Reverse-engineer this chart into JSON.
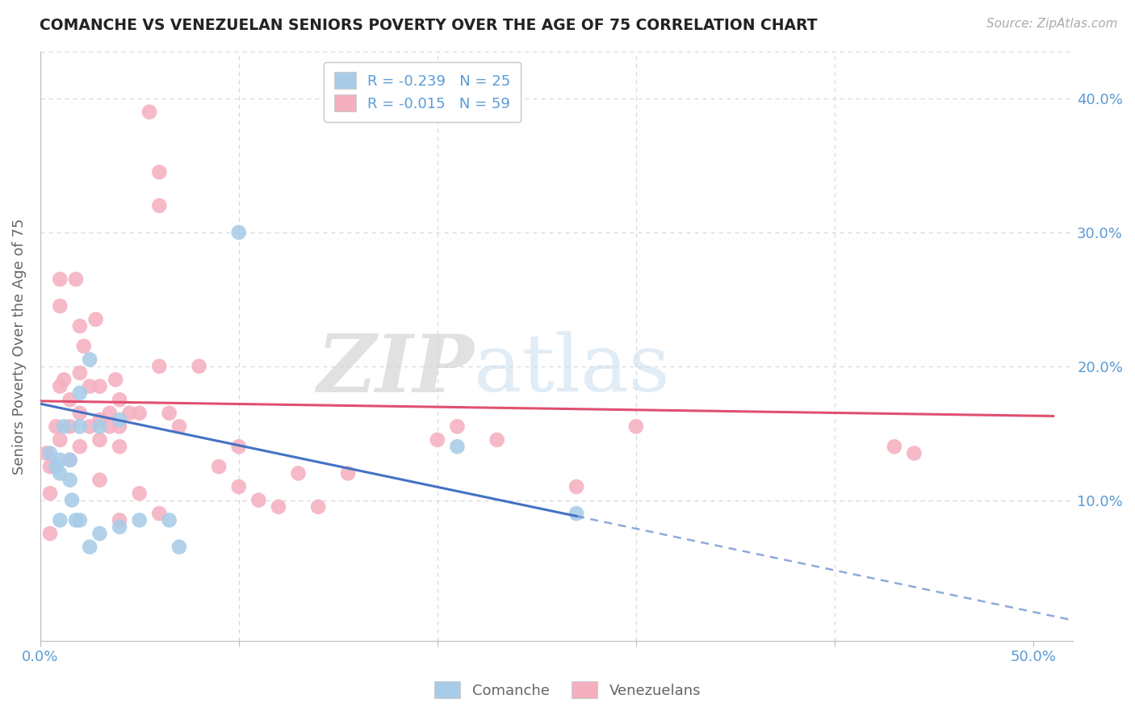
{
  "title": "COMANCHE VS VENEZUELAN SENIORS POVERTY OVER THE AGE OF 75 CORRELATION CHART",
  "source": "Source: ZipAtlas.com",
  "ylabel": "Seniors Poverty Over the Age of 75",
  "xlim": [
    0.0,
    0.52
  ],
  "ylim": [
    -0.005,
    0.435
  ],
  "yticks": [
    0.1,
    0.2,
    0.3,
    0.4
  ],
  "ytick_labels": [
    "10.0%",
    "20.0%",
    "30.0%",
    "40.0%"
  ],
  "xticks": [
    0.0,
    0.1,
    0.2,
    0.3,
    0.4,
    0.5
  ],
  "xtick_labels": [
    "0.0%",
    "",
    "",
    "",
    "",
    "50.0%"
  ],
  "comanche_color": "#a8cce8",
  "venezuelan_color": "#f5b0c0",
  "comanche_line_color": "#4472c4",
  "venezuelan_line_color": "#e05070",
  "legend_label_1": "R = -0.239   N = 25",
  "legend_label_2": "R = -0.015   N = 59",
  "bottom_label_1": "Comanche",
  "bottom_label_2": "Venezuelans",
  "watermark_zip": "ZIP",
  "watermark_atlas": "atlas",
  "background_color": "#ffffff",
  "tick_color": "#5b9bd5",
  "grid_color": "#d8d8d8",
  "title_color": "#222222",
  "comanche_x": [
    0.005,
    0.008,
    0.01,
    0.01,
    0.01,
    0.012,
    0.015,
    0.015,
    0.016,
    0.018,
    0.02,
    0.02,
    0.02,
    0.025,
    0.025,
    0.03,
    0.03,
    0.04,
    0.04,
    0.05,
    0.065,
    0.07,
    0.1,
    0.21,
    0.27
  ],
  "comanche_y": [
    0.135,
    0.125,
    0.13,
    0.12,
    0.085,
    0.155,
    0.13,
    0.115,
    0.1,
    0.085,
    0.18,
    0.155,
    0.085,
    0.205,
    0.065,
    0.155,
    0.075,
    0.16,
    0.08,
    0.085,
    0.085,
    0.065,
    0.3,
    0.14,
    0.09
  ],
  "venezuelan_x": [
    0.003,
    0.005,
    0.005,
    0.005,
    0.008,
    0.01,
    0.01,
    0.01,
    0.01,
    0.012,
    0.015,
    0.015,
    0.015,
    0.018,
    0.02,
    0.02,
    0.02,
    0.02,
    0.022,
    0.025,
    0.025,
    0.028,
    0.03,
    0.03,
    0.03,
    0.03,
    0.035,
    0.035,
    0.038,
    0.04,
    0.04,
    0.04,
    0.04,
    0.045,
    0.05,
    0.05,
    0.055,
    0.06,
    0.06,
    0.06,
    0.065,
    0.07,
    0.08,
    0.09,
    0.1,
    0.1,
    0.11,
    0.12,
    0.13,
    0.14,
    0.155,
    0.2,
    0.21,
    0.23,
    0.27,
    0.3,
    0.43,
    0.44,
    0.06
  ],
  "venezuelan_y": [
    0.135,
    0.125,
    0.105,
    0.075,
    0.155,
    0.265,
    0.245,
    0.185,
    0.145,
    0.19,
    0.175,
    0.155,
    0.13,
    0.265,
    0.23,
    0.195,
    0.165,
    0.14,
    0.215,
    0.185,
    0.155,
    0.235,
    0.185,
    0.16,
    0.145,
    0.115,
    0.165,
    0.155,
    0.19,
    0.175,
    0.155,
    0.14,
    0.085,
    0.165,
    0.165,
    0.105,
    0.39,
    0.345,
    0.32,
    0.2,
    0.165,
    0.155,
    0.2,
    0.125,
    0.14,
    0.11,
    0.1,
    0.095,
    0.12,
    0.095,
    0.12,
    0.145,
    0.155,
    0.145,
    0.11,
    0.155,
    0.14,
    0.135,
    0.09
  ],
  "comanche_line_x0": 0.0,
  "comanche_line_y0": 0.172,
  "comanche_line_x1": 0.27,
  "comanche_line_y1": 0.088,
  "venezuelan_line_x0": 0.0,
  "venezuelan_line_y0": 0.174,
  "venezuelan_line_x1": 0.5,
  "venezuelan_line_y1": 0.163
}
